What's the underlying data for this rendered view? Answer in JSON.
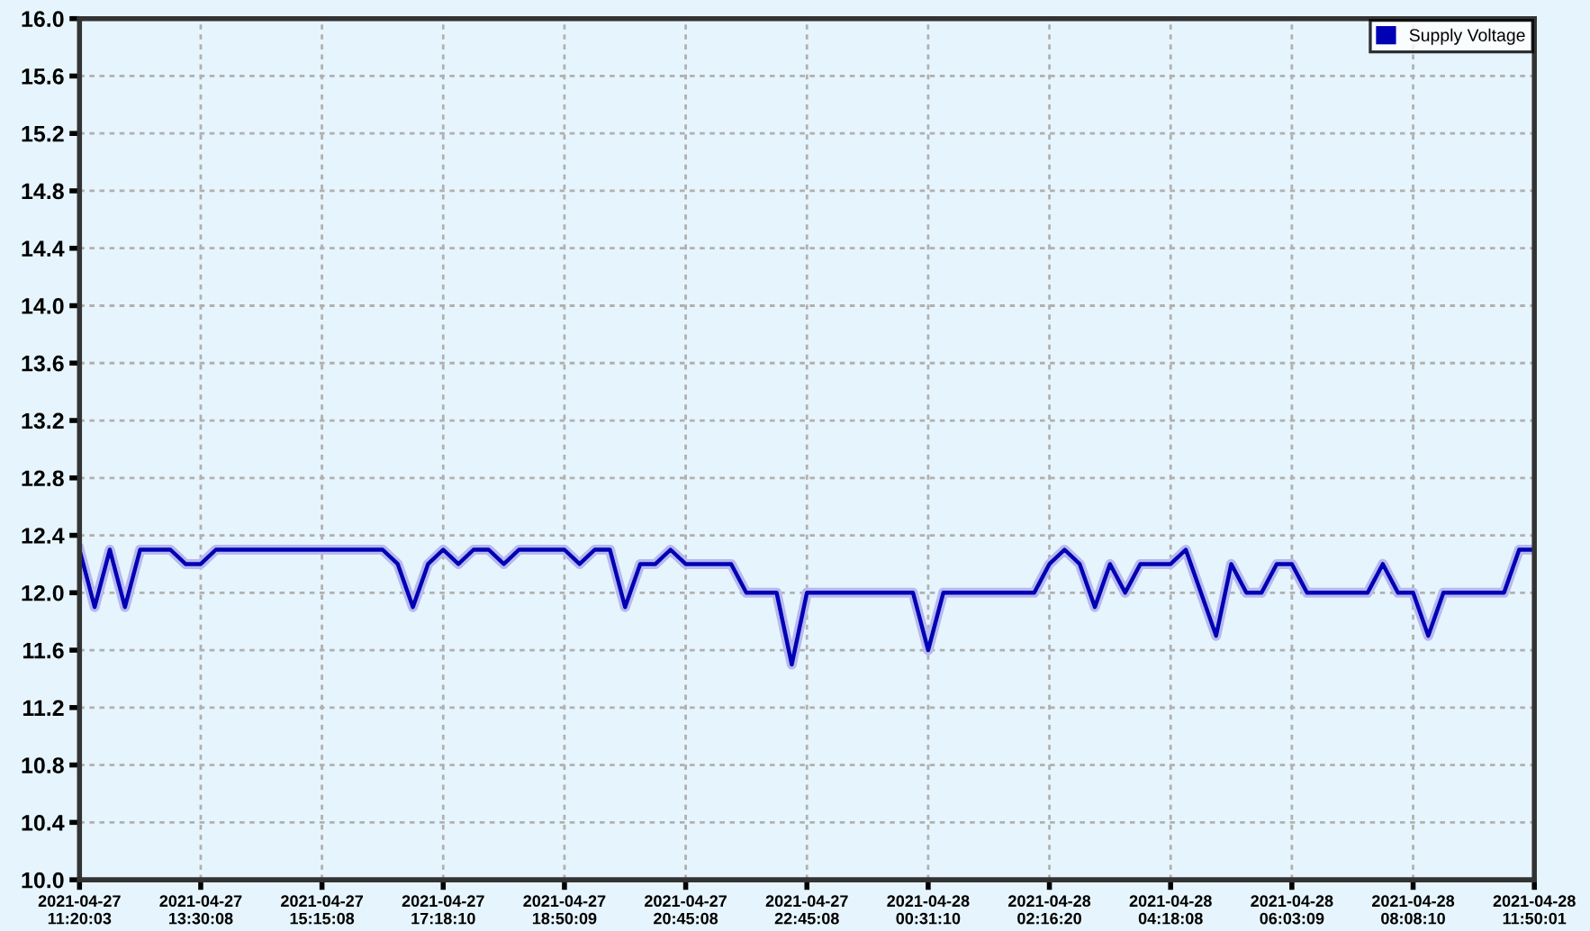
{
  "chart_data": {
    "type": "line",
    "categories": [
      "2021-04-27\n11:20:03",
      null,
      null,
      null,
      null,
      null,
      null,
      null,
      "2021-04-27\n13:30:08",
      null,
      null,
      null,
      null,
      null,
      null,
      null,
      "2021-04-27\n15:15:08",
      null,
      null,
      null,
      null,
      null,
      null,
      null,
      "2021-04-27\n17:18:10",
      null,
      null,
      null,
      null,
      null,
      null,
      null,
      "2021-04-27\n18:50:09",
      null,
      null,
      null,
      null,
      null,
      null,
      null,
      "2021-04-27\n20:45:08",
      null,
      null,
      null,
      null,
      null,
      null,
      null,
      "2021-04-27\n22:45:08",
      null,
      null,
      null,
      null,
      null,
      null,
      null,
      "2021-04-28\n00:31:10",
      null,
      null,
      null,
      null,
      null,
      null,
      null,
      "2021-04-28\n02:16:20",
      null,
      null,
      null,
      null,
      null,
      null,
      null,
      "2021-04-28\n04:18:08",
      null,
      null,
      null,
      null,
      null,
      null,
      null,
      "2021-04-28\n06:03:09",
      null,
      null,
      null,
      null,
      null,
      null,
      null,
      "2021-04-28\n08:08:10",
      null,
      null,
      null,
      null,
      null,
      null,
      null,
      "2021-04-28\n11:50:01"
    ],
    "series": [
      {
        "name": "Supply Voltage",
        "color": "#0000b4",
        "values": [
          12.3,
          11.9,
          12.3,
          11.9,
          12.3,
          12.3,
          12.3,
          12.2,
          12.2,
          12.3,
          12.3,
          12.3,
          12.3,
          12.3,
          12.3,
          12.3,
          12.3,
          12.3,
          12.3,
          12.3,
          12.3,
          12.2,
          11.9,
          12.2,
          12.3,
          12.2,
          12.3,
          12.3,
          12.2,
          12.3,
          12.3,
          12.3,
          12.3,
          12.2,
          12.3,
          12.3,
          11.9,
          12.2,
          12.2,
          12.3,
          12.2,
          12.2,
          12.2,
          12.2,
          12.0,
          12.0,
          12.0,
          11.5,
          12.0,
          12.0,
          12.0,
          12.0,
          12.0,
          12.0,
          12.0,
          12.0,
          11.6,
          12.0,
          12.0,
          12.0,
          12.0,
          12.0,
          12.0,
          12.0,
          12.2,
          12.3,
          12.2,
          11.9,
          12.2,
          12.0,
          12.2,
          12.2,
          12.2,
          12.3,
          12.0,
          11.7,
          12.2,
          12.0,
          12.0,
          12.2,
          12.2,
          12.0,
          12.0,
          12.0,
          12.0,
          12.0,
          12.2,
          12.0,
          12.0,
          11.7,
          12.0,
          12.0,
          12.0,
          12.0,
          12.0,
          12.3,
          12.3
        ]
      }
    ],
    "ylim": [
      10.0,
      16.0
    ],
    "yticks": [
      {
        "value": 10.0,
        "label": "10.0"
      },
      10.4,
      10.8,
      11.2,
      11.6,
      {
        "value": 12.0,
        "label": "12.0"
      },
      12.4,
      12.8,
      13.2,
      13.6,
      {
        "value": 14.0,
        "label": "14.0"
      },
      14.4,
      14.8,
      15.2,
      15.6,
      {
        "value": 16.0,
        "label": "16.0"
      }
    ],
    "grid": true,
    "legend": "top right",
    "marker": "none",
    "line_style": "solid"
  }
}
